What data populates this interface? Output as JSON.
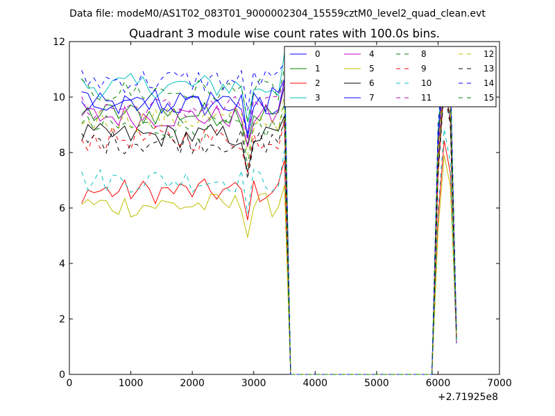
{
  "chart_data": {
    "type": "line",
    "suptitle": "Data file: modeM0/AS1T02_083T01_9000002304_15559cztM0_level2_quad_clean.evt",
    "title": "Quadrant 3 module wise count rates with 100.0s bins.",
    "xlabel": "",
    "ylabel": "",
    "x_offset_label": "+2.71925e8",
    "xlim": [
      0,
      7000
    ],
    "ylim": [
      0,
      12
    ],
    "x_ticks": [
      "0",
      "1000",
      "2000",
      "3000",
      "4000",
      "5000",
      "6000",
      "7000"
    ],
    "y_ticks": [
      "0",
      "2",
      "4",
      "6",
      "8",
      "10",
      "12"
    ],
    "grid": false,
    "legend_position": "top-right",
    "legend_columns": 4,
    "series": [
      {
        "name": "0",
        "color": "#0000ff",
        "dash": "solid"
      },
      {
        "name": "1",
        "color": "#008000",
        "dash": "solid"
      },
      {
        "name": "2",
        "color": "#ff0000",
        "dash": "solid"
      },
      {
        "name": "3",
        "color": "#00bfbf",
        "dash": "solid"
      },
      {
        "name": "4",
        "color": "#bf00bf",
        "dash": "solid"
      },
      {
        "name": "5",
        "color": "#bfbf00",
        "dash": "solid"
      },
      {
        "name": "6",
        "color": "#000000",
        "dash": "solid"
      },
      {
        "name": "7",
        "color": "#0000ff",
        "dash": "solid"
      },
      {
        "name": "8",
        "color": "#008000",
        "dash": "dashed"
      },
      {
        "name": "9",
        "color": "#ff0000",
        "dash": "dashed"
      },
      {
        "name": "10",
        "color": "#00bfbf",
        "dash": "dashed"
      },
      {
        "name": "11",
        "color": "#bf00bf",
        "dash": "dashed"
      },
      {
        "name": "12",
        "color": "#bfbf00",
        "dash": "dashed"
      },
      {
        "name": "13",
        "color": "#000000",
        "dash": "dashed"
      },
      {
        "name": "14",
        "color": "#0000ff",
        "dash": "dashed"
      },
      {
        "name": "15",
        "color": "#008000",
        "dash": "dashed"
      }
    ],
    "level_estimates": [
      9.7,
      9.4,
      6.6,
      10.4,
      9.3,
      6.1,
      8.6,
      9.9,
      8.9,
      8.5,
      7.0,
      9.6,
      9.2,
      8.4,
      10.6,
      10.2
    ],
    "x_first": 200,
    "x_step": 100,
    "x_active_end": 3500,
    "x_second_on": [
      6000,
      6100,
      6200
    ],
    "x_last": 6300
  }
}
